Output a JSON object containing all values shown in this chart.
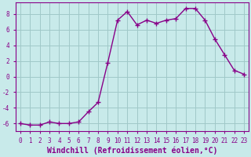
{
  "x": [
    0,
    1,
    2,
    3,
    4,
    5,
    6,
    7,
    8,
    9,
    10,
    11,
    12,
    13,
    14,
    15,
    16,
    17,
    18,
    19,
    20,
    21,
    22,
    23
  ],
  "y": [
    -6.0,
    -6.2,
    -6.2,
    -5.8,
    -6.0,
    -6.0,
    -5.8,
    -4.5,
    -3.3,
    1.8,
    7.2,
    8.3,
    6.6,
    7.2,
    6.8,
    7.2,
    7.4,
    8.7,
    8.7,
    7.2,
    4.8,
    2.8,
    0.8,
    0.3
  ],
  "line_color": "#880088",
  "marker": "+",
  "marker_size": 4,
  "marker_lw": 1.0,
  "bg_color": "#c8eaea",
  "grid_color": "#a0c8c8",
  "xlabel": "Windchill (Refroidissement éolien,°C)",
  "xlabel_fontsize": 7,
  "xlim": [
    -0.5,
    23.5
  ],
  "ylim": [
    -7,
    9.5
  ],
  "yticks": [
    -6,
    -4,
    -2,
    0,
    2,
    4,
    6,
    8
  ],
  "xtick_labels": [
    "0",
    "1",
    "2",
    "3",
    "4",
    "5",
    "6",
    "7",
    "8",
    "9",
    "10",
    "11",
    "12",
    "13",
    "14",
    "15",
    "16",
    "17",
    "18",
    "19",
    "20",
    "21",
    "22",
    "23"
  ],
  "tick_fontsize": 5.5,
  "line_width": 1.0,
  "text_color": "#880088"
}
